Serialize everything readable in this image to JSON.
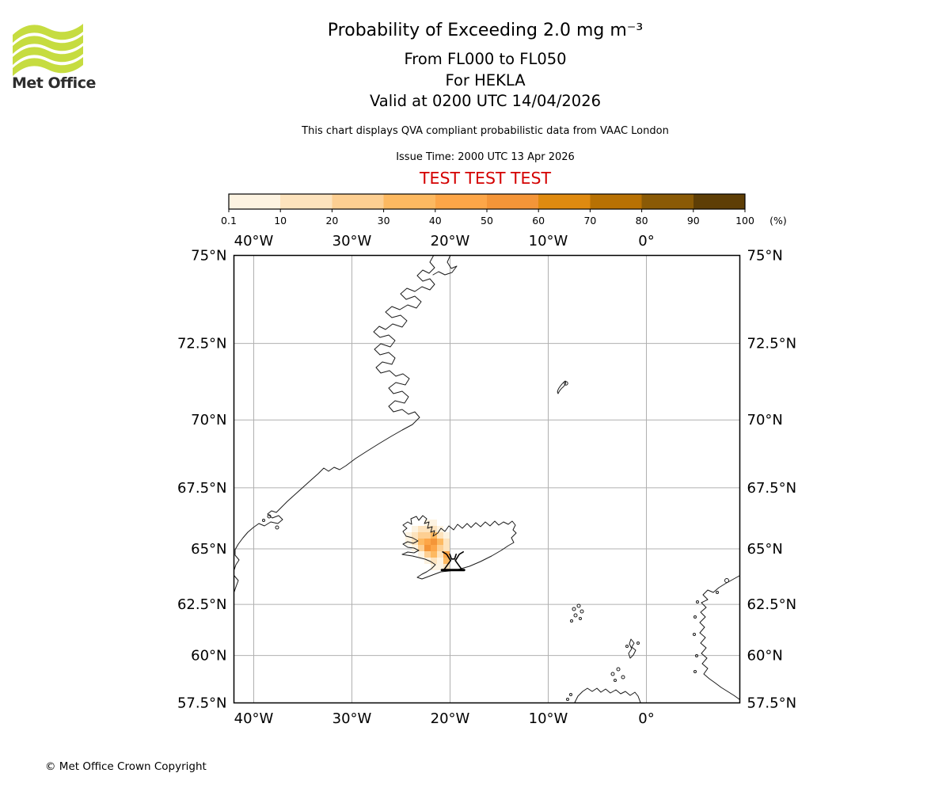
{
  "header": {
    "logo": {
      "brand": "Met Office",
      "color": "#c6dc40"
    },
    "title": "Probability of Exceeding 2.0 mg m⁻³",
    "subtitle1": "From FL000 to FL050",
    "subtitle2": "For HEKLA",
    "subtitle3": "Valid at 0200 UTC 14/04/2026",
    "note": "This chart displays QVA compliant probabilistic data from VAAC London",
    "issue_time": "Issue Time: 2000 UTC 13 Apr 2026",
    "test_banner": {
      "text": "TEST TEST TEST",
      "color": "#d40000"
    }
  },
  "colorbar": {
    "tick_labels": [
      "0.1",
      "10",
      "20",
      "30",
      "40",
      "50",
      "60",
      "70",
      "80",
      "90",
      "100"
    ],
    "unit_label": "(%)",
    "colors": [
      "#fdf3e1",
      "#fde3bd",
      "#fdcf92",
      "#fdb961",
      "#fda648",
      "#f49538",
      "#df8a10",
      "#b87103",
      "#8a5a06",
      "#5e3e06"
    ]
  },
  "chart_data": {
    "type": "heatmap",
    "title": "Probability of Exceeding 2.0 mg m⁻³",
    "flight_levels": "FL000 to FL050",
    "volcano_name": "HEKLA",
    "valid_time": "0200 UTC 14/04/2026",
    "issue_time": "2000 UTC 13 Apr 2026",
    "source": "VAAC London",
    "projection": "mercator",
    "lon_range": [
      -42,
      9.5
    ],
    "lat_range": [
      57.5,
      75
    ],
    "grid_on": true,
    "x_ticks": [
      {
        "lon": -40,
        "label": "40°W"
      },
      {
        "lon": -30,
        "label": "30°W"
      },
      {
        "lon": -20,
        "label": "20°W"
      },
      {
        "lon": -10,
        "label": "10°W"
      },
      {
        "lon": 0,
        "label": "0°"
      }
    ],
    "y_ticks": [
      {
        "lat": 75,
        "label": "75°N"
      },
      {
        "lat": 72.5,
        "label": "72.5°N"
      },
      {
        "lat": 70,
        "label": "70°N"
      },
      {
        "lat": 67.5,
        "label": "67.5°N"
      },
      {
        "lat": 65,
        "label": "65°N"
      },
      {
        "lat": 62.5,
        "label": "62.5°N"
      },
      {
        "lat": 60,
        "label": "60°N"
      },
      {
        "lat": 57.5,
        "label": "57.5°N"
      }
    ],
    "legend_levels_percent": [
      0.1,
      10,
      20,
      30,
      40,
      50,
      60,
      70,
      80,
      90,
      100
    ],
    "legend_position": "top",
    "volcano": {
      "name": "HEKLA",
      "lon": -19.7,
      "lat": 64.0
    },
    "plume": {
      "description": "Small area of elevated exceedance probability (max 50–60%) over west Iceland near 22°W, 65°N; one 40–50% cell at the volcano",
      "max_bin_percent": "50–60",
      "cells": [
        [
          3,
          0,
          0
        ],
        [
          4,
          0,
          0
        ],
        [
          1,
          1,
          0
        ],
        [
          2,
          1,
          1
        ],
        [
          3,
          1,
          1
        ],
        [
          4,
          1,
          1
        ],
        [
          5,
          1,
          0
        ],
        [
          0,
          2,
          0
        ],
        [
          1,
          2,
          1
        ],
        [
          2,
          2,
          2
        ],
        [
          3,
          2,
          2
        ],
        [
          4,
          2,
          3
        ],
        [
          5,
          2,
          1
        ],
        [
          6,
          2,
          0
        ],
        [
          0,
          3,
          0
        ],
        [
          1,
          3,
          1
        ],
        [
          2,
          3,
          3
        ],
        [
          3,
          3,
          4
        ],
        [
          4,
          3,
          5
        ],
        [
          5,
          3,
          3
        ],
        [
          6,
          3,
          1
        ],
        [
          1,
          4,
          0
        ],
        [
          2,
          4,
          2
        ],
        [
          3,
          4,
          5
        ],
        [
          4,
          4,
          4
        ],
        [
          5,
          4,
          2
        ],
        [
          6,
          4,
          1
        ],
        [
          2,
          5,
          0
        ],
        [
          3,
          5,
          2
        ],
        [
          4,
          5,
          3
        ],
        [
          5,
          5,
          1
        ],
        [
          6,
          5,
          4
        ],
        [
          3,
          6,
          0
        ],
        [
          4,
          6,
          1
        ],
        [
          5,
          6,
          0
        ],
        [
          6,
          6,
          3
        ],
        [
          4,
          7,
          0
        ],
        [
          5,
          7,
          0
        ],
        [
          6,
          7,
          1
        ]
      ]
    }
  },
  "footer": {
    "copyright": "© Met Office Crown Copyright"
  }
}
